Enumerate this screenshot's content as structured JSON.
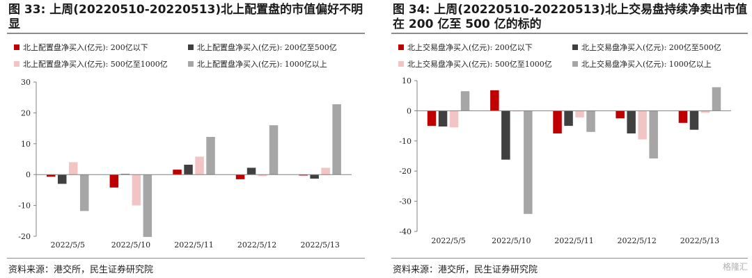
{
  "source_text": "资料来源：港交所，民生证券研究院",
  "watermark": "格隆汇",
  "chart_data": [
    {
      "type": "bar",
      "title": "图 33: 上周(20220510-20220513)北上配置盘的市值偏好不明显",
      "xlabel": "",
      "ylabel": "",
      "categories": [
        "2022/5/5",
        "2022/5/10",
        "2022/5/11",
        "2022/5/12",
        "2022/5/13"
      ],
      "ylim": [
        -20,
        30
      ],
      "yticks": [
        -20,
        -10,
        0,
        10,
        20,
        30
      ],
      "series": [
        {
          "name": "北上配置盘净买入(亿元): 200亿以下",
          "color": "#c00000",
          "values": [
            -0.7,
            -4.2,
            1.6,
            -1.5,
            -0.3
          ]
        },
        {
          "name": "北上配置盘净买入(亿元): 200亿至500亿",
          "color": "#404040",
          "values": [
            -3.0,
            0.2,
            3.2,
            2.2,
            -1.3
          ]
        },
        {
          "name": "北上配置盘净买入(亿元): 500亿至1000亿",
          "color": "#f2c4c4",
          "values": [
            4.0,
            -10.0,
            5.8,
            -0.5,
            2.2
          ]
        },
        {
          "name": "北上配置盘净买入(亿元): 1000亿以上",
          "color": "#a6a6a6",
          "values": [
            -11.8,
            -20.2,
            12.2,
            16.0,
            22.8
          ]
        }
      ]
    },
    {
      "type": "bar",
      "title": "图 34: 上周(20220510-20220513)北上交易盘持续净卖出市值在 200 亿至 500 亿的标的",
      "xlabel": "",
      "ylabel": "",
      "categories": [
        "2022/5/5",
        "2022/5/10",
        "2022/5/11",
        "2022/5/12",
        "2022/5/13"
      ],
      "ylim": [
        -40,
        10
      ],
      "yticks": [
        -40,
        -30,
        -20,
        -10,
        0,
        10
      ],
      "series": [
        {
          "name": "北上交易盘净买入(亿元): 200亿以下",
          "color": "#c00000",
          "values": [
            -5.0,
            6.8,
            -7.5,
            -2.5,
            -4.0
          ]
        },
        {
          "name": "北上交易盘净买入(亿元): 200亿至500亿",
          "color": "#404040",
          "values": [
            -5.2,
            -16.2,
            -5.0,
            -7.5,
            -6.3
          ]
        },
        {
          "name": "北上交易盘净买入(亿元): 500亿至1000亿",
          "color": "#f2c4c4",
          "values": [
            -5.5,
            -0.2,
            -2.2,
            -9.5,
            -0.7
          ]
        },
        {
          "name": "北上交易盘净买入(亿元): 1000亿以上",
          "color": "#a6a6a6",
          "values": [
            6.5,
            -34.2,
            -7.0,
            -15.8,
            7.8
          ]
        }
      ]
    }
  ]
}
